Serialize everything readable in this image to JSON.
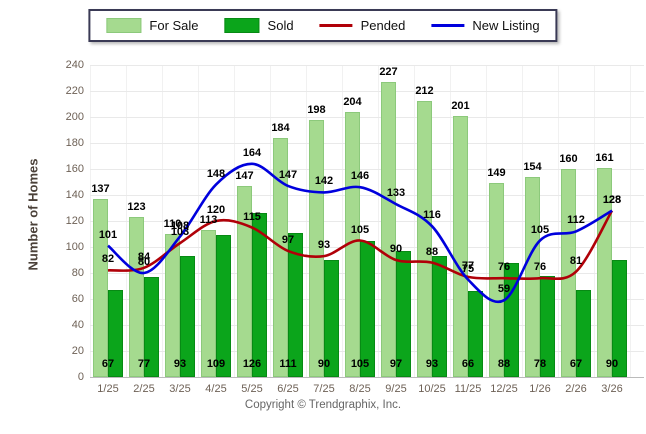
{
  "legend": {
    "items": [
      {
        "label": "For Sale",
        "type": "bar",
        "color": "#a5da8f",
        "border": "#8cc97b"
      },
      {
        "label": "Sold",
        "type": "bar",
        "color": "#0ba51b",
        "border": "#078a14"
      },
      {
        "label": "Pended",
        "type": "line",
        "color": "#b00008"
      },
      {
        "label": "New Listing",
        "type": "line",
        "color": "#0000dd"
      }
    ]
  },
  "y_axis": {
    "title": "Number of Homes",
    "min": 0,
    "max": 240,
    "step": 20
  },
  "footer": {
    "copyright": "Copyright © Trendgraphix, Inc."
  },
  "chart_data": {
    "type": "bar",
    "subtype": "grouped bars with overlaid smooth lines",
    "title": "",
    "xlabel": "",
    "ylabel": "Number of Homes",
    "ylim": [
      0,
      240
    ],
    "grid": "horizontal",
    "legend_position": "top-center",
    "categories": [
      "1/25",
      "2/25",
      "3/25",
      "4/25",
      "5/25",
      "6/25",
      "7/25",
      "8/25",
      "9/25",
      "10/25",
      "11/25",
      "12/25",
      "1/26",
      "2/26",
      "3/26"
    ],
    "series": [
      {
        "name": "For Sale",
        "type": "bar",
        "color": "#a5da8f",
        "values": [
          137,
          123,
          110,
          113,
          147,
          184,
          198,
          204,
          227,
          212,
          201,
          149,
          154,
          160,
          161
        ]
      },
      {
        "name": "Sold",
        "type": "bar",
        "color": "#0ba51b",
        "values": [
          67,
          77,
          93,
          109,
          126,
          111,
          90,
          105,
          97,
          93,
          66,
          88,
          78,
          67,
          90
        ]
      },
      {
        "name": "Pended",
        "type": "line",
        "color": "#b00008",
        "values": [
          82,
          84,
          103,
          120,
          115,
          97,
          93,
          105,
          90,
          88,
          77,
          76,
          76,
          81,
          128
        ]
      },
      {
        "name": "New Listing",
        "type": "line",
        "color": "#0000dd",
        "values": [
          101,
          80,
          108,
          148,
          164,
          147,
          142,
          146,
          133,
          116,
          75,
          59,
          105,
          112,
          128
        ]
      }
    ]
  }
}
